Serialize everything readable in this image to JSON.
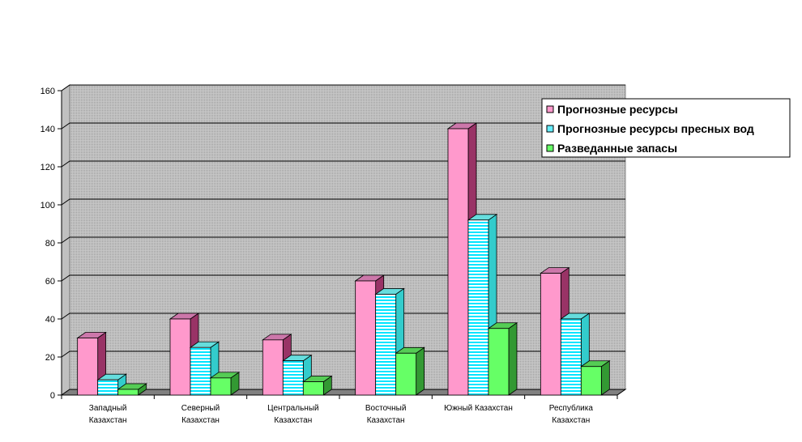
{
  "chart_data": {
    "type": "bar",
    "categories": [
      [
        "Западный",
        "Казахстан"
      ],
      [
        "Северный",
        "Казахстан"
      ],
      [
        "Центральный",
        "Казахстан"
      ],
      [
        "Восточный",
        "Казахстан"
      ],
      [
        "Южный Казахстан"
      ],
      [
        "Республика",
        "Казахстан"
      ]
    ],
    "series": [
      {
        "name": "Прогнозные ресурсы",
        "values": [
          30,
          40,
          29,
          60,
          140,
          64
        ]
      },
      {
        "name": "Прогнозные ресурсы пресных вод",
        "values": [
          8,
          25,
          18,
          53,
          92,
          40
        ]
      },
      {
        "name": "Разведанные запасы",
        "values": [
          3,
          9,
          7,
          22,
          35,
          15
        ]
      }
    ],
    "ylim": [
      0,
      160
    ],
    "yticks": [
      0,
      20,
      40,
      60,
      80,
      100,
      120,
      140,
      160
    ],
    "grid": true,
    "legend_position": "top-right",
    "colors": {
      "series": [
        "#ff99cc",
        "#ccffff",
        "#66ff66"
      ],
      "series_dark": [
        "#993366",
        "#33cccc",
        "#339933"
      ],
      "wall": "#c0c0c0",
      "floor": "#808080"
    }
  }
}
